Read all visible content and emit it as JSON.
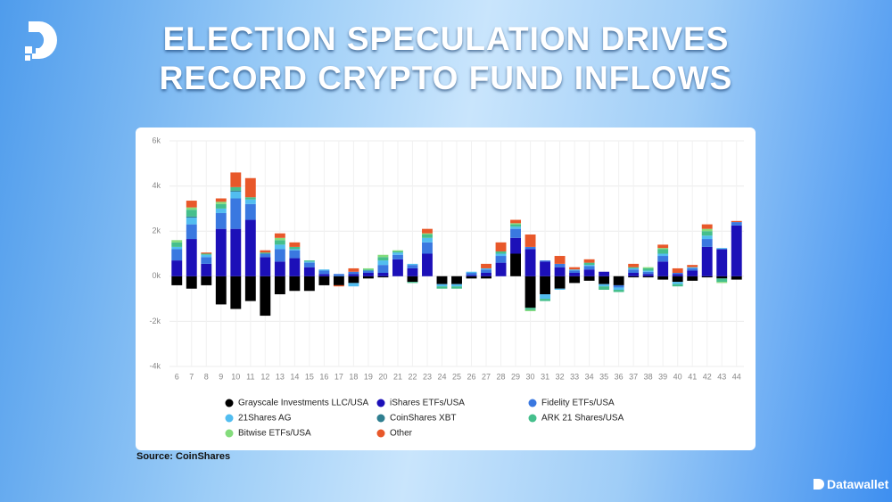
{
  "brand": "Datawallet",
  "chart_data": {
    "type": "stacked-bar",
    "title": "ELECTION SPECULATION DRIVES RECORD CRYPTO FUND INFLOWS",
    "source": "Source: CoinShares",
    "categories": [
      "6",
      "7",
      "8",
      "9",
      "10",
      "11",
      "12",
      "13",
      "14",
      "15",
      "16",
      "17",
      "18",
      "19",
      "20",
      "21",
      "22",
      "23",
      "24",
      "25",
      "26",
      "27",
      "28",
      "29",
      "30",
      "31",
      "32",
      "33",
      "34",
      "35",
      "36",
      "37",
      "38",
      "39",
      "40",
      "41",
      "42",
      "43",
      "44"
    ],
    "ylim": [
      -4000,
      6000
    ],
    "yticks": [
      {
        "value": -4000,
        "label": "-4k"
      },
      {
        "value": -2000,
        "label": "-2k"
      },
      {
        "value": 0,
        "label": "0k"
      },
      {
        "value": 2000,
        "label": "2k"
      },
      {
        "value": 4000,
        "label": "4k"
      },
      {
        "value": 6000,
        "label": "6k"
      }
    ],
    "grid": true,
    "series": [
      {
        "name": "Grayscale Investments LLC/USA",
        "color": "#000000",
        "values": [
          -400,
          -550,
          -400,
          -1250,
          -1450,
          -1100,
          -1750,
          -800,
          -650,
          -650,
          -400,
          -400,
          -300,
          -100,
          -50,
          0,
          -250,
          0,
          -350,
          -350,
          -100,
          -100,
          0,
          1000,
          -1400,
          -800,
          -550,
          -300,
          -200,
          -350,
          -400,
          -50,
          -50,
          -150,
          -250,
          -200,
          -50,
          -100,
          -150
        ]
      },
      {
        "name": "iShares ETFs/USA",
        "color": "#1c10b8",
        "values": [
          700,
          1650,
          550,
          2100,
          2100,
          2500,
          850,
          650,
          800,
          400,
          100,
          0,
          100,
          150,
          150,
          750,
          350,
          1000,
          0,
          0,
          50,
          150,
          600,
          700,
          1200,
          650,
          400,
          150,
          300,
          200,
          0,
          150,
          100,
          650,
          100,
          250,
          1300,
          1200,
          2250
        ]
      },
      {
        "name": "Fidelity ETFs/USA",
        "color": "#3a78e0",
        "values": [
          500,
          650,
          300,
          700,
          1350,
          700,
          150,
          550,
          350,
          200,
          150,
          100,
          100,
          100,
          350,
          200,
          150,
          500,
          0,
          0,
          100,
          150,
          300,
          400,
          100,
          50,
          150,
          100,
          150,
          0,
          -100,
          150,
          100,
          250,
          50,
          100,
          350,
          0,
          150
        ]
      },
      {
        "name": "21Shares AG",
        "color": "#52bdf0",
        "values": [
          100,
          300,
          100,
          200,
          300,
          200,
          0,
          200,
          50,
          50,
          50,
          0,
          -150,
          0,
          200,
          100,
          50,
          200,
          -100,
          -100,
          50,
          50,
          100,
          100,
          0,
          -200,
          -50,
          50,
          50,
          -100,
          -100,
          50,
          50,
          100,
          -100,
          50,
          150,
          50,
          0
        ]
      },
      {
        "name": "CoinShares XBT",
        "color": "#2f7f90",
        "values": [
          0,
          50,
          0,
          0,
          50,
          0,
          0,
          0,
          0,
          0,
          0,
          0,
          0,
          0,
          0,
          0,
          0,
          0,
          0,
          0,
          0,
          0,
          0,
          0,
          0,
          0,
          0,
          0,
          0,
          0,
          0,
          0,
          0,
          0,
          0,
          0,
          0,
          0,
          0
        ]
      },
      {
        "name": "ARK 21 Shares/USA",
        "color": "#45bf8c",
        "values": [
          200,
          300,
          50,
          200,
          150,
          100,
          50,
          200,
          100,
          50,
          0,
          0,
          0,
          50,
          150,
          50,
          -50,
          150,
          -100,
          -100,
          0,
          0,
          100,
          100,
          -100,
          -100,
          0,
          0,
          100,
          -150,
          -100,
          50,
          100,
          200,
          -100,
          0,
          200,
          -150,
          0
        ]
      },
      {
        "name": "Bitwise ETFs/USA",
        "color": "#84dc7c",
        "values": [
          100,
          100,
          0,
          100,
          0,
          0,
          0,
          100,
          0,
          0,
          0,
          0,
          0,
          50,
          100,
          50,
          0,
          50,
          0,
          0,
          0,
          0,
          0,
          50,
          -50,
          0,
          0,
          0,
          0,
          0,
          0,
          0,
          50,
          50,
          0,
          0,
          100,
          -50,
          0
        ]
      },
      {
        "name": "Other",
        "color": "#e8582a",
        "values": [
          0,
          300,
          50,
          150,
          650,
          850,
          100,
          200,
          200,
          0,
          0,
          -50,
          150,
          0,
          0,
          0,
          0,
          200,
          0,
          0,
          0,
          200,
          400,
          150,
          550,
          0,
          350,
          100,
          150,
          0,
          0,
          150,
          0,
          150,
          200,
          100,
          200,
          0,
          50
        ]
      }
    ]
  }
}
